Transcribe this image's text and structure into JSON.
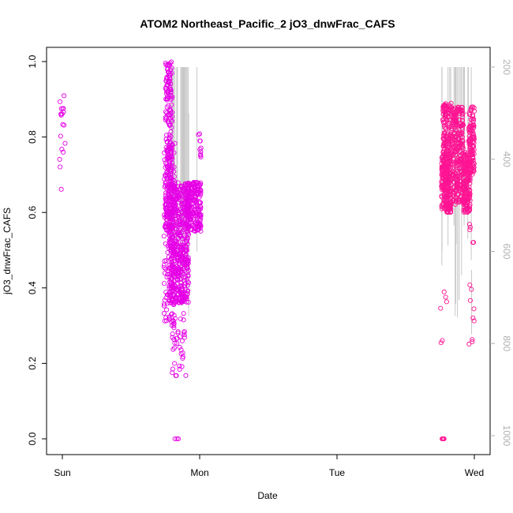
{
  "chart_data": {
    "type": "scatter",
    "title": "ATOM2 Northeast_Pacific_2 jO3_dnwFrac_CAFS",
    "xlabel": "Date",
    "ylabel": "jO3_dnwFrac_CAFS",
    "x_ticks": [
      "Sun",
      "Mon",
      "Tue",
      "Wed"
    ],
    "y_ticks": [
      "0.0",
      "0.2",
      "0.4",
      "0.6",
      "0.8",
      "1.0"
    ],
    "y_tick_values": [
      0,
      0.2,
      0.4,
      0.6,
      0.8,
      1.0
    ],
    "ylim": [
      0,
      1.0
    ],
    "y2_ticks": [
      "200",
      "400",
      "600",
      "800",
      "1000"
    ],
    "y2_tick_values": [
      200,
      400,
      600,
      800,
      1000
    ],
    "y2lim": [
      1000,
      200
    ],
    "grid": false,
    "colors": {
      "series_1": "#e600e6",
      "series_2": "#ff1493",
      "secondary_line": "#c8c8c8"
    },
    "series": [
      {
        "segments": [
          {
            "x": [
              -0.02,
              0.02
            ],
            "range": [
              0.66,
              0.91
            ],
            "count": 18
          },
          {
            "x": [
              0.75,
              0.8
            ],
            "range": [
              0.55,
              1.0
            ],
            "count": 220
          },
          {
            "x": [
              0.74,
              0.82
            ],
            "range": [
              0.3,
              0.8
            ],
            "count": 160
          },
          {
            "x": [
              0.78,
              0.92
            ],
            "range": [
              0.36,
              0.68
            ],
            "count": 520
          },
          {
            "x": [
              0.8,
              0.9
            ],
            "range": [
              0.15,
              0.34
            ],
            "count": 40
          },
          {
            "x": [
              0.9,
              1.01
            ],
            "range": [
              0.55,
              0.68
            ],
            "count": 220
          },
          {
            "x": [
              0.99,
              1.01
            ],
            "range": [
              0.72,
              0.82
            ],
            "count": 10
          }
        ],
        "values_zero": [
          0.82,
          0.835,
          0.845
        ]
      },
      {
        "segments": [
          {
            "x": [
              2.76,
              2.83
            ],
            "range": [
              0.6,
              0.76
            ],
            "count": 260
          },
          {
            "x": [
              2.77,
              2.84
            ],
            "range": [
              0.76,
              0.89
            ],
            "count": 120
          },
          {
            "x": [
              2.84,
              2.92
            ],
            "range": [
              0.62,
              0.88
            ],
            "count": 260
          },
          {
            "x": [
              2.92,
              2.97
            ],
            "range": [
              0.6,
              0.76
            ],
            "count": 180
          },
          {
            "x": [
              2.96,
              3.0
            ],
            "range": [
              0.7,
              0.88
            ],
            "count": 120
          },
          {
            "x": [
              2.96,
              3.0
            ],
            "range": [
              0.25,
              0.6
            ],
            "count": 14
          },
          {
            "x": [
              2.75,
              2.8
            ],
            "range": [
              0.24,
              0.46
            ],
            "count": 6
          }
        ],
        "values_zero": [
          2.765,
          2.77,
          2.775,
          2.78
        ]
      }
    ]
  }
}
